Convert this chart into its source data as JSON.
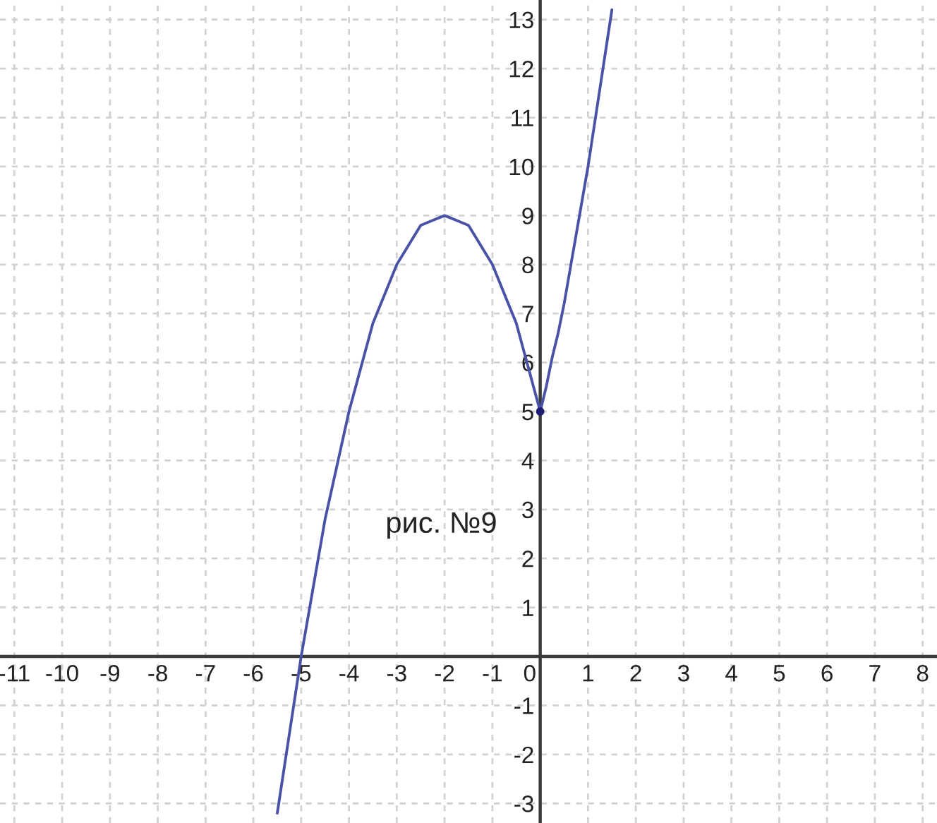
{
  "chart_data": {
    "type": "line",
    "annotations": [
      "рис. №9"
    ],
    "xlim": [
      -11.3,
      8.3
    ],
    "ylim": [
      -3.4,
      13.4
    ],
    "xticks": [
      -11,
      -10,
      -9,
      -8,
      -7,
      -6,
      -5,
      -4,
      -3,
      -2,
      -1,
      0,
      1,
      2,
      3,
      4,
      5,
      6,
      7,
      8
    ],
    "yticks": [
      -3,
      -2,
      -1,
      1,
      2,
      3,
      4,
      5,
      6,
      7,
      8,
      9,
      10,
      11,
      12,
      13
    ],
    "grid": true,
    "series": [
      {
        "color": "#4a52a8",
        "x": [
          -5.5,
          -5.25,
          -5,
          -4.75,
          -4.5,
          -4.25,
          -4,
          -3.75,
          -3.5,
          -3.25,
          -3,
          -2.75,
          -2.5,
          -2.25,
          -2,
          -1.75,
          -1.5,
          -1.25,
          -1,
          -0.75,
          -0.5,
          -0.25,
          0,
          0.125,
          0.25,
          0.375,
          0.5,
          0.625,
          0.75,
          0.875,
          1,
          1.125,
          1.25,
          1.375,
          1.5
        ],
        "values": [
          -3.2,
          -1.6,
          0,
          1.4,
          2.8,
          3.9,
          5,
          5.9,
          6.8,
          7.4,
          8,
          8.4,
          8.8,
          8.9,
          9,
          8.9,
          8.8,
          8.4,
          8,
          7.4,
          6.8,
          5.9,
          5,
          5.5,
          6.1,
          6.6,
          7.2,
          7.9,
          8.6,
          9.3,
          10,
          10.8,
          11.6,
          12.4,
          13.2
        ]
      },
      {
        "type": "scatter",
        "color": "#1c1c70",
        "x": [
          0
        ],
        "values": [
          5
        ],
        "marker": "circle"
      }
    ]
  }
}
